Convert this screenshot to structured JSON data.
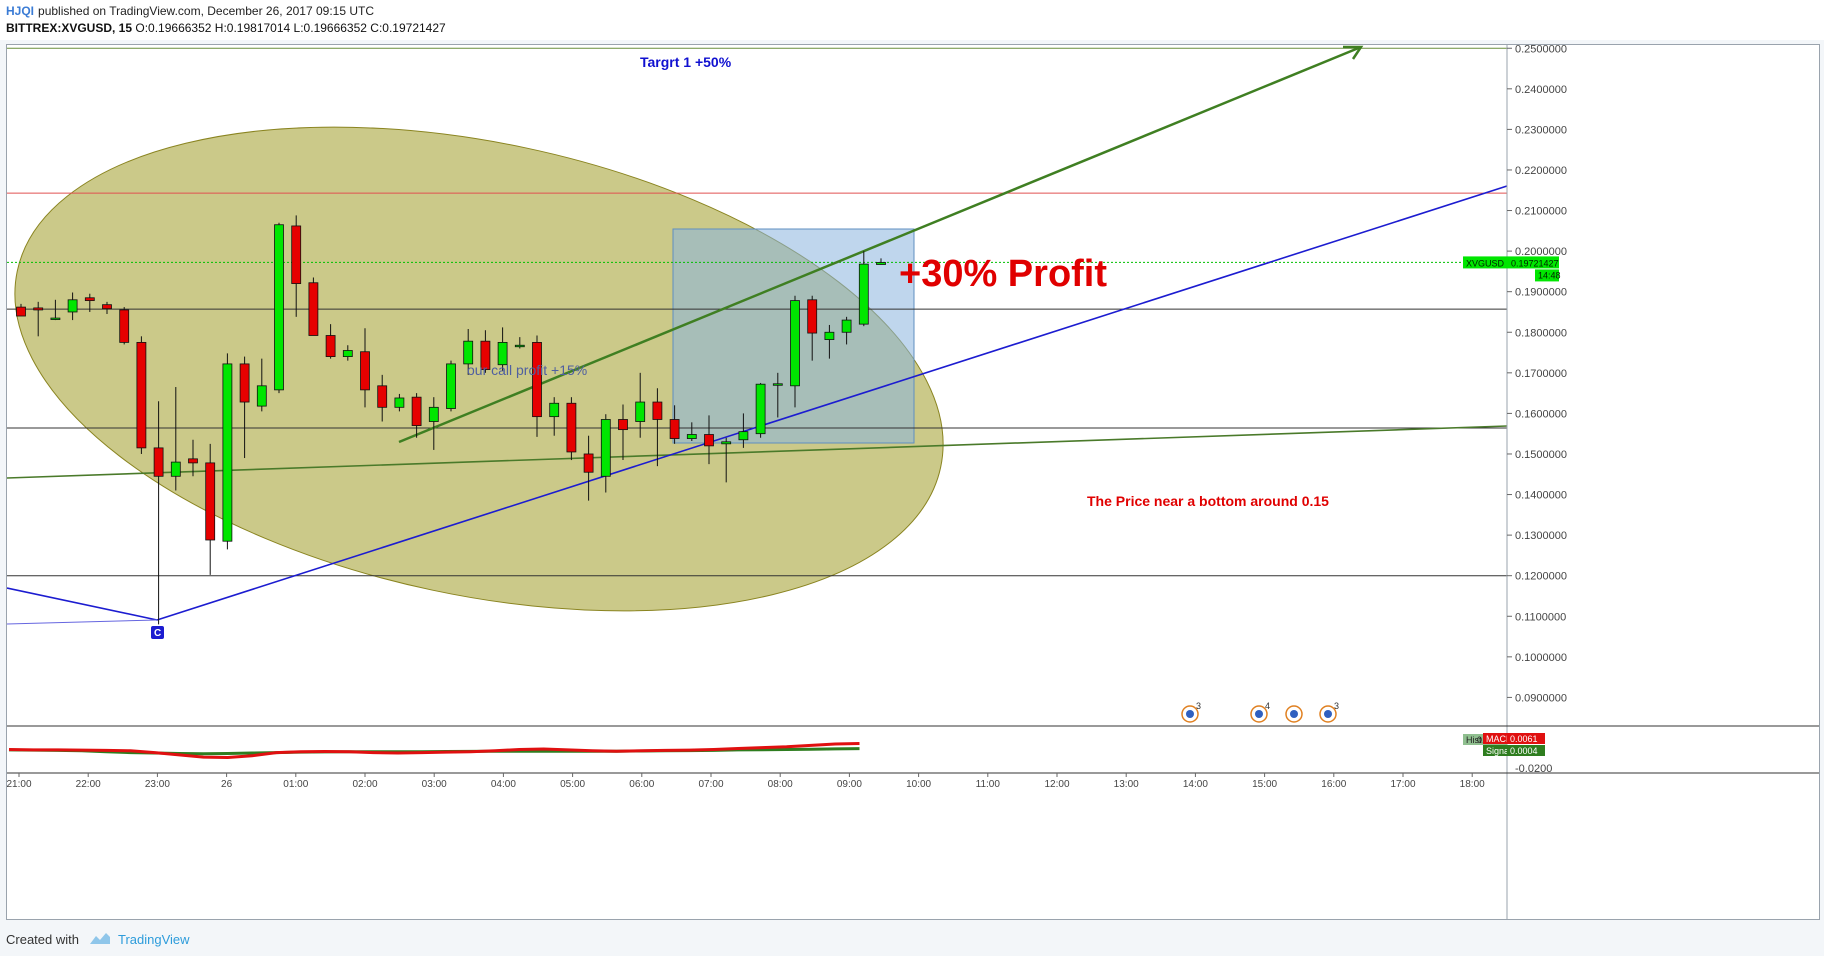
{
  "header": {
    "author": "HJQI",
    "published": "published on TradingView.com, December 26, 2017 09:15 UTC",
    "symbol": "BITTREX:XVGUSD, 15",
    "open": "O:0.19666352",
    "high": "H:0.19817014",
    "low": "L:0.19666352",
    "close": "C:0.19721427"
  },
  "footer": {
    "created_with": "Created with",
    "brand": "TradingView"
  },
  "chart_data": {
    "type": "candlestick",
    "symbol": "XVGUSD",
    "timeframe": "15",
    "price_axis_ticks": [
      "0.2500000",
      "0.2400000",
      "0.2300000",
      "0.2200000",
      "0.2100000",
      "0.2000000",
      "0.1900000",
      "0.1800000",
      "0.1700000",
      "0.1600000",
      "0.1500000",
      "0.1400000",
      "0.1300000",
      "0.1200000",
      "0.1100000",
      "0.1000000",
      "0.0900000"
    ],
    "ylim": [
      0.0832,
      0.2508
    ],
    "time_axis_ticks": [
      "21:00",
      "22:00",
      "23:00",
      "26",
      "01:00",
      "02:00",
      "03:00",
      "04:00",
      "05:00",
      "06:00",
      "07:00",
      "08:00",
      "09:00",
      "10:00",
      "11:00",
      "12:00",
      "13:00",
      "14:00",
      "15:00",
      "16:00",
      "17:00",
      "18:00"
    ],
    "candles": [
      {
        "o": 0.1862,
        "h": 0.187,
        "l": 0.184,
        "c": 0.184
      },
      {
        "o": 0.186,
        "h": 0.1875,
        "l": 0.179,
        "c": 0.1855
      },
      {
        "o": 0.1835,
        "h": 0.188,
        "l": 0.183,
        "c": 0.1835
      },
      {
        "o": 0.185,
        "h": 0.1898,
        "l": 0.183,
        "c": 0.188
      },
      {
        "o": 0.1885,
        "h": 0.1895,
        "l": 0.185,
        "c": 0.1878
      },
      {
        "o": 0.1868,
        "h": 0.1875,
        "l": 0.1845,
        "c": 0.1858
      },
      {
        "o": 0.1855,
        "h": 0.1862,
        "l": 0.177,
        "c": 0.1775
      },
      {
        "o": 0.1775,
        "h": 0.179,
        "l": 0.15,
        "c": 0.1515
      },
      {
        "o": 0.1515,
        "h": 0.163,
        "l": 0.108,
        "c": 0.1445
      },
      {
        "o": 0.1445,
        "h": 0.1665,
        "l": 0.141,
        "c": 0.148
      },
      {
        "o": 0.1488,
        "h": 0.1535,
        "l": 0.1445,
        "c": 0.1478
      },
      {
        "o": 0.1478,
        "h": 0.1525,
        "l": 0.1202,
        "c": 0.1288
      },
      {
        "o": 0.1285,
        "h": 0.1748,
        "l": 0.1265,
        "c": 0.1722
      },
      {
        "o": 0.1722,
        "h": 0.174,
        "l": 0.149,
        "c": 0.1628
      },
      {
        "o": 0.1618,
        "h": 0.1735,
        "l": 0.1605,
        "c": 0.1668
      },
      {
        "o": 0.1658,
        "h": 0.207,
        "l": 0.165,
        "c": 0.2065
      },
      {
        "o": 0.2062,
        "h": 0.2088,
        "l": 0.1838,
        "c": 0.192
      },
      {
        "o": 0.1922,
        "h": 0.1935,
        "l": 0.18,
        "c": 0.1792
      },
      {
        "o": 0.1792,
        "h": 0.182,
        "l": 0.1735,
        "c": 0.174
      },
      {
        "o": 0.174,
        "h": 0.1768,
        "l": 0.173,
        "c": 0.1755
      },
      {
        "o": 0.1752,
        "h": 0.181,
        "l": 0.1615,
        "c": 0.1658
      },
      {
        "o": 0.1668,
        "h": 0.1695,
        "l": 0.158,
        "c": 0.1615
      },
      {
        "o": 0.1615,
        "h": 0.1648,
        "l": 0.1605,
        "c": 0.1638
      },
      {
        "o": 0.164,
        "h": 0.165,
        "l": 0.154,
        "c": 0.157
      },
      {
        "o": 0.158,
        "h": 0.164,
        "l": 0.151,
        "c": 0.1615
      },
      {
        "o": 0.1612,
        "h": 0.173,
        "l": 0.1605,
        "c": 0.1722
      },
      {
        "o": 0.1722,
        "h": 0.1808,
        "l": 0.1695,
        "c": 0.1778
      },
      {
        "o": 0.1778,
        "h": 0.1805,
        "l": 0.17,
        "c": 0.1708
      },
      {
        "o": 0.172,
        "h": 0.1812,
        "l": 0.1705,
        "c": 0.1775
      },
      {
        "o": 0.1768,
        "h": 0.1788,
        "l": 0.176,
        "c": 0.1768
      },
      {
        "o": 0.1775,
        "h": 0.1792,
        "l": 0.1542,
        "c": 0.1592
      },
      {
        "o": 0.1592,
        "h": 0.164,
        "l": 0.1545,
        "c": 0.1625
      },
      {
        "o": 0.1625,
        "h": 0.164,
        "l": 0.1485,
        "c": 0.1505
      },
      {
        "o": 0.15,
        "h": 0.1545,
        "l": 0.1385,
        "c": 0.1455
      },
      {
        "o": 0.1445,
        "h": 0.1598,
        "l": 0.1405,
        "c": 0.1585
      },
      {
        "o": 0.1585,
        "h": 0.1622,
        "l": 0.1485,
        "c": 0.156
      },
      {
        "o": 0.158,
        "h": 0.17,
        "l": 0.154,
        "c": 0.1628
      },
      {
        "o": 0.1628,
        "h": 0.1662,
        "l": 0.147,
        "c": 0.1585
      },
      {
        "o": 0.1585,
        "h": 0.162,
        "l": 0.1525,
        "c": 0.1538
      },
      {
        "o": 0.1538,
        "h": 0.1578,
        "l": 0.1532,
        "c": 0.1548
      },
      {
        "o": 0.1548,
        "h": 0.1595,
        "l": 0.1475,
        "c": 0.152
      },
      {
        "o": 0.1525,
        "h": 0.154,
        "l": 0.143,
        "c": 0.153
      },
      {
        "o": 0.1535,
        "h": 0.16,
        "l": 0.1515,
        "c": 0.1555
      },
      {
        "o": 0.155,
        "h": 0.1675,
        "l": 0.154,
        "c": 0.1672
      },
      {
        "o": 0.1672,
        "h": 0.17,
        "l": 0.159,
        "c": 0.1673
      },
      {
        "o": 0.1668,
        "h": 0.189,
        "l": 0.1615,
        "c": 0.1878
      },
      {
        "o": 0.188,
        "h": 0.189,
        "l": 0.173,
        "c": 0.1798
      },
      {
        "o": 0.1782,
        "h": 0.1818,
        "l": 0.1735,
        "c": 0.18
      },
      {
        "o": 0.18,
        "h": 0.1838,
        "l": 0.177,
        "c": 0.183
      },
      {
        "o": 0.182,
        "h": 0.2,
        "l": 0.1815,
        "c": 0.1968
      },
      {
        "o": 0.1967,
        "h": 0.1982,
        "l": 0.1967,
        "c": 0.1972
      }
    ],
    "current_price_label": "XVGUSD",
    "current_price": "0.19721427",
    "countdown": "14:48",
    "annotations": {
      "target": "Targrt 1 +50%",
      "profit": "+30% Profit",
      "call_profit": "our call profit +15%",
      "bottom_note": "The Price near a bottom around 0.15",
      "marker": "C"
    },
    "event_badges": [
      "3",
      "4",
      "",
      "3"
    ],
    "macd": {
      "labels": {
        "hist": "Hist",
        "macd": "MACD",
        "signal": "Signal"
      },
      "values": {
        "hist": "0.0057",
        "macd": "0.0061",
        "signal": "0.0004"
      },
      "axis_tick": "-0.0200",
      "macd_line": [
        -0.0005,
        -0.001,
        -0.001,
        -0.0012,
        -0.0015,
        -0.002,
        -0.004,
        -0.0065,
        -0.009,
        -0.0095,
        -0.0075,
        -0.004,
        -0.003,
        -0.0028,
        -0.003,
        -0.004,
        -0.0045,
        -0.004,
        -0.0035,
        -0.003,
        -0.002,
        -0.0005,
        0.0,
        -0.001,
        -0.002,
        -0.0025,
        -0.002,
        -0.0015,
        -0.0012,
        -0.0005,
        0.0005,
        0.0015,
        0.0025,
        0.004,
        0.0055,
        0.0061
      ],
      "signal_line": [
        -0.001,
        -0.0012,
        -0.0015,
        -0.002,
        -0.003,
        -0.004,
        -0.0045,
        -0.005,
        -0.0052,
        -0.005,
        -0.0045,
        -0.004,
        -0.0035,
        -0.0032,
        -0.003,
        -0.003,
        -0.003,
        -0.003,
        -0.0028,
        -0.0027,
        -0.0026,
        -0.0025,
        -0.0025,
        -0.0025,
        -0.0025,
        -0.0024,
        -0.0022,
        -0.002,
        -0.0018,
        -0.0015,
        -0.001,
        -0.0008,
        -0.0005,
        -0.0002,
        0.0001,
        0.0004
      ]
    },
    "colors": {
      "up": "#00e600",
      "down": "#e60000",
      "target_text": "#1010d0",
      "profit_text": "#e00000",
      "price_tag": "#00e600"
    }
  }
}
